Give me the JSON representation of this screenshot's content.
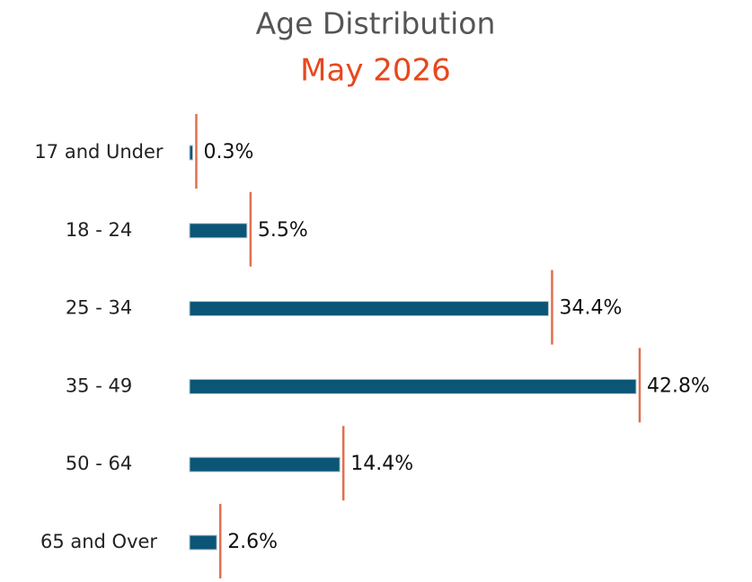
{
  "chart_data": {
    "type": "bar",
    "orientation": "horizontal",
    "title": "Age Distribution",
    "subtitle": "May 2026",
    "categories": [
      "17 and Under",
      "18 - 24",
      "25 - 34",
      "35 - 49",
      "50 - 64",
      "65 and Over"
    ],
    "values": [
      0.3,
      5.5,
      34.4,
      42.8,
      14.4,
      2.6
    ],
    "value_labels": [
      "0.3%",
      "5.5%",
      "34.4%",
      "42.8%",
      "14.4%",
      "2.6%"
    ],
    "color": "#0b5577",
    "reference_color": "#e07050"
  }
}
